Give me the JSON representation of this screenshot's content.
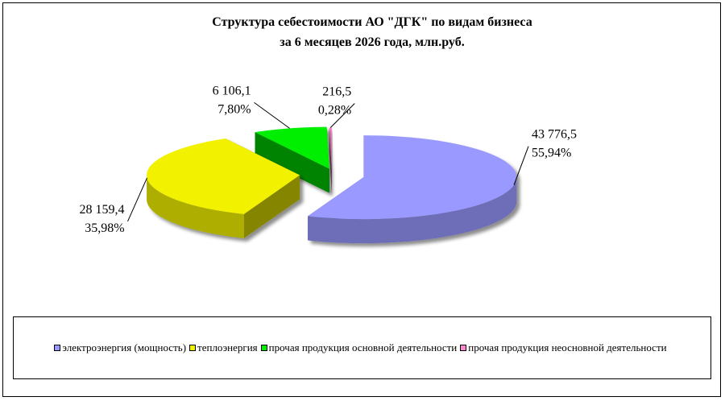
{
  "chart_data": {
    "type": "pie",
    "title_lines": [
      "Структура себестоимости АО \"ДГК\" по видам  бизнеса",
      "за 6 месяцев 2026 года, млн.руб."
    ],
    "categories": [
      "электроэнергия (мощность)",
      "теплоэнергия",
      "прочая продукция  основной  деятельности",
      "прочая продукция  неосновной  деятельности"
    ],
    "values": [
      43776.5,
      28159.4,
      6106.1,
      216.5
    ],
    "value_labels": [
      "43 776,5",
      "28 159,4",
      "6 106,1",
      "216,5"
    ],
    "percent_labels": [
      "55,94%",
      "35,98%",
      "7,80%",
      "0,28%"
    ],
    "colors": [
      "#9999ff",
      "#f2f200",
      "#00ee00",
      "#ff88cc"
    ],
    "legend_position": "bottom",
    "exploded": true,
    "three_d": true
  }
}
